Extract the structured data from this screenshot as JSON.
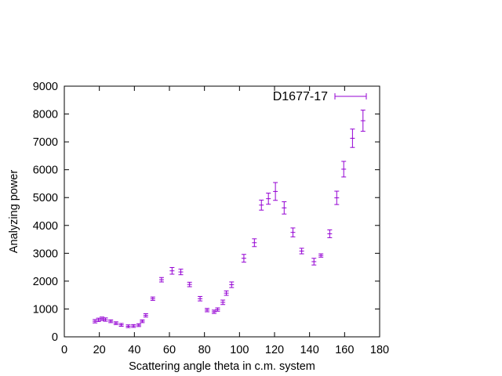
{
  "chart_data": {
    "type": "scatter",
    "title": "",
    "xlabel": "Scattering angle theta in c.m. system",
    "ylabel": "Analyzing power",
    "xlim": [
      0,
      180
    ],
    "ylim": [
      0,
      9000
    ],
    "x_ticks": [
      0,
      20,
      40,
      60,
      80,
      100,
      120,
      140,
      160,
      180
    ],
    "y_ticks": [
      0,
      1000,
      2000,
      3000,
      4000,
      5000,
      6000,
      7000,
      8000,
      9000
    ],
    "grid": false,
    "legend_position": "top-right",
    "series": [
      {
        "name": "D1677-17",
        "color": "#9400d3",
        "style": "errorbars",
        "points": [
          {
            "x": 17.5,
            "y": 560,
            "err": 60
          },
          {
            "x": 19.5,
            "y": 610,
            "err": 60
          },
          {
            "x": 21.5,
            "y": 650,
            "err": 60
          },
          {
            "x": 23.5,
            "y": 620,
            "err": 60
          },
          {
            "x": 26.5,
            "y": 560,
            "err": 50
          },
          {
            "x": 29.5,
            "y": 490,
            "err": 50
          },
          {
            "x": 32.5,
            "y": 430,
            "err": 50
          },
          {
            "x": 36.5,
            "y": 380,
            "err": 50
          },
          {
            "x": 39.5,
            "y": 390,
            "err": 50
          },
          {
            "x": 42.5,
            "y": 420,
            "err": 50
          },
          {
            "x": 44.5,
            "y": 560,
            "err": 50
          },
          {
            "x": 46.5,
            "y": 770,
            "err": 60
          },
          {
            "x": 50.5,
            "y": 1370,
            "err": 60
          },
          {
            "x": 55.5,
            "y": 2050,
            "err": 80
          },
          {
            "x": 61.5,
            "y": 2370,
            "err": 120
          },
          {
            "x": 66.5,
            "y": 2330,
            "err": 100
          },
          {
            "x": 71.5,
            "y": 1880,
            "err": 80
          },
          {
            "x": 77.5,
            "y": 1370,
            "err": 80
          },
          {
            "x": 81.5,
            "y": 960,
            "err": 60
          },
          {
            "x": 85.5,
            "y": 900,
            "err": 60
          },
          {
            "x": 87.5,
            "y": 980,
            "err": 60
          },
          {
            "x": 90.5,
            "y": 1240,
            "err": 80
          },
          {
            "x": 92.5,
            "y": 1570,
            "err": 80
          },
          {
            "x": 95.5,
            "y": 1870,
            "err": 100
          },
          {
            "x": 102.5,
            "y": 2820,
            "err": 140
          },
          {
            "x": 108.5,
            "y": 3380,
            "err": 140
          },
          {
            "x": 112.5,
            "y": 4730,
            "err": 180
          },
          {
            "x": 116.5,
            "y": 4960,
            "err": 200
          },
          {
            "x": 120.5,
            "y": 5220,
            "err": 320
          },
          {
            "x": 125.5,
            "y": 4630,
            "err": 220
          },
          {
            "x": 130.5,
            "y": 3750,
            "err": 160
          },
          {
            "x": 135.5,
            "y": 3080,
            "err": 100
          },
          {
            "x": 142.5,
            "y": 2700,
            "err": 120
          },
          {
            "x": 146.5,
            "y": 2920,
            "err": 60
          },
          {
            "x": 151.5,
            "y": 3700,
            "err": 140
          },
          {
            "x": 155.5,
            "y": 4990,
            "err": 240
          },
          {
            "x": 159.5,
            "y": 6020,
            "err": 280
          },
          {
            "x": 164.5,
            "y": 7130,
            "err": 330
          },
          {
            "x": 170.5,
            "y": 7760,
            "err": 380
          }
        ]
      }
    ]
  }
}
